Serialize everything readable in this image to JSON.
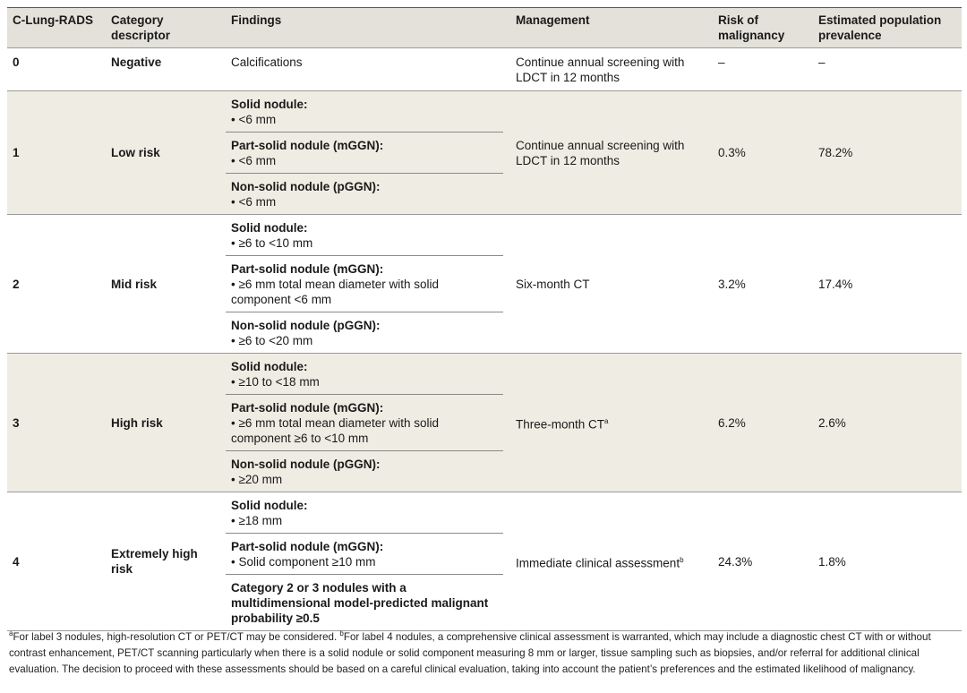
{
  "header": [
    "C-Lung-RADS",
    "Category descriptor",
    "Findings",
    "Management",
    "Risk of malignancy",
    "Estimated population prevalence"
  ],
  "rows": [
    {
      "level": "0",
      "descriptor": "Negative",
      "findings": [
        {
          "items": [
            "Calcifications"
          ]
        }
      ],
      "management": "Continue annual screening with LDCT in 12 months",
      "risk": "–",
      "prevalence": "–"
    },
    {
      "level": "1",
      "descriptor": "Low risk",
      "findings": [
        {
          "title": "Solid nodule:",
          "items": [
            "• <6 mm"
          ]
        },
        {
          "title": "Part-solid nodule (mGGN):",
          "items": [
            "• <6 mm"
          ]
        },
        {
          "title": "Non-solid nodule (pGGN):",
          "items": [
            "• <6 mm"
          ]
        }
      ],
      "management": "Continue annual screening with LDCT in 12 months",
      "risk": "0.3%",
      "prevalence": "78.2%"
    },
    {
      "level": "2",
      "descriptor": "Mid risk",
      "findings": [
        {
          "title": "Solid nodule:",
          "items": [
            "• ≥6 to <10 mm"
          ]
        },
        {
          "title": "Part-solid nodule (mGGN):",
          "items": [
            "• ≥6 mm total mean diameter with solid component <6 mm"
          ]
        },
        {
          "title": "Non-solid nodule (pGGN):",
          "items": [
            "• ≥6 to <20 mm"
          ]
        }
      ],
      "management": "Six-month CT",
      "risk": "3.2%",
      "prevalence": "17.4%"
    },
    {
      "level": "3",
      "descriptor": "High risk",
      "findings": [
        {
          "title": "Solid nodule:",
          "items": [
            "• ≥10 to <18 mm"
          ]
        },
        {
          "title": "Part-solid nodule (mGGN):",
          "items": [
            "• ≥6 mm total mean diameter with solid component ≥6 to <10 mm"
          ]
        },
        {
          "title": "Non-solid nodule (pGGN):",
          "items": [
            "• ≥20 mm"
          ]
        }
      ],
      "management": "Three-month CT",
      "management_note": "a",
      "risk": "6.2%",
      "prevalence": "2.6%"
    },
    {
      "level": "4",
      "descriptor": "Extremely high risk",
      "findings": [
        {
          "title": "Solid nodule:",
          "items": [
            "• ≥18 mm"
          ]
        },
        {
          "title": "Part-solid nodule (mGGN):",
          "items": [
            "• Solid component ≥10 mm"
          ]
        },
        {
          "title": "Category 2 or 3 nodules with a multidimensional model-predicted malignant probability ≥0.5"
        }
      ],
      "management": "Immediate clinical assessment",
      "management_note": "b",
      "risk": "24.3%",
      "prevalence": "1.8%"
    }
  ],
  "footnotes": [
    {
      "mark": "a",
      "text": "For label 3 nodules, high-resolution CT or PET/CT may be considered. "
    },
    {
      "mark": "b",
      "text": "For label 4 nodules, a comprehensive clinical assessment is warranted, which may include a diagnostic chest CT with or without contrast enhancement, PET/CT scanning particularly when there is a solid nodule or solid component measuring 8 mm or larger, tissue sampling such as biopsies, and/or referral for additional clinical evaluation. The decision to proceed with these assessments should be based on a careful clinical evaluation, taking into account the patient’s preferences and the estimated likelihood of malignancy."
    }
  ]
}
